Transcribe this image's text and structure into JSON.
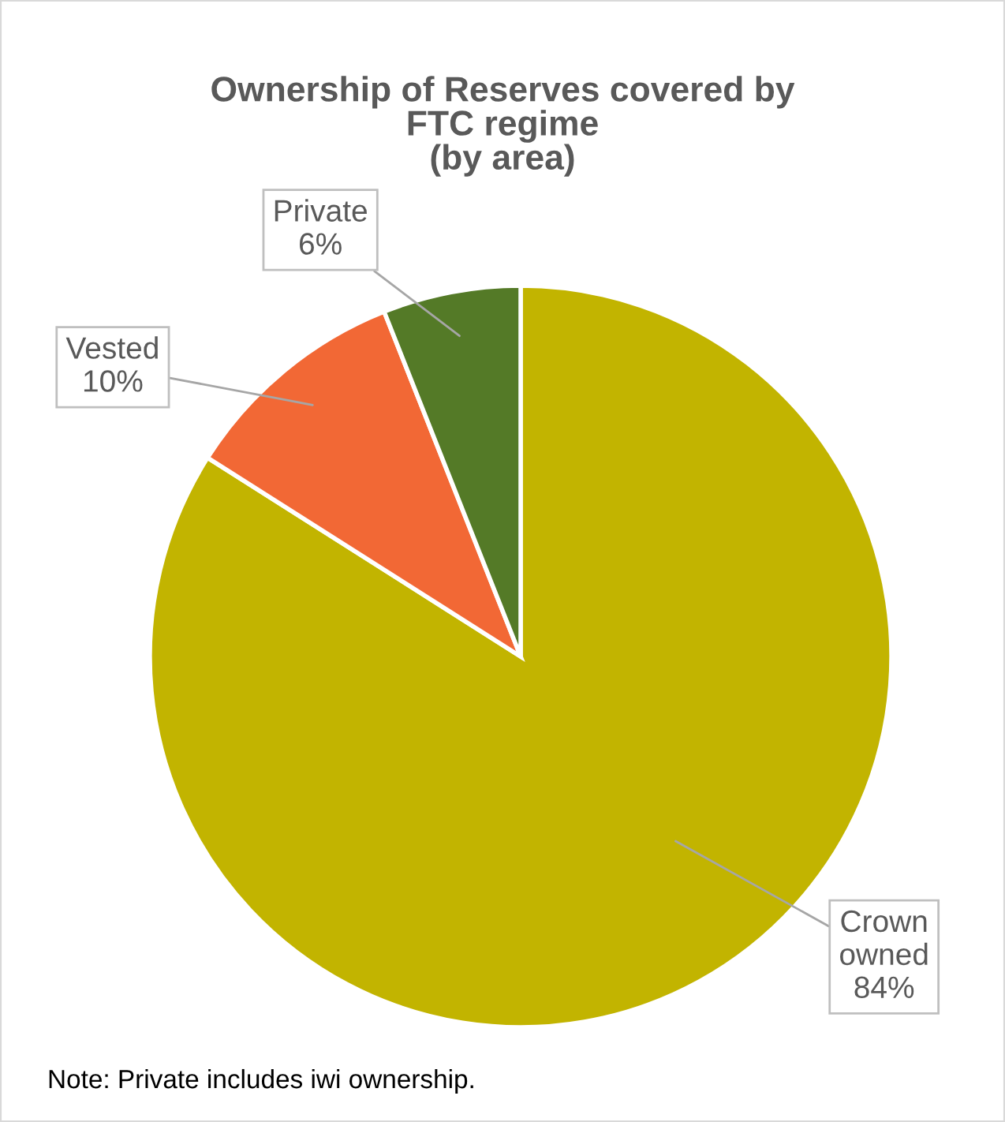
{
  "chart_data": {
    "type": "pie",
    "title": "Ownership of Reserves covered by\nFTC regime\n(by area)",
    "categories": [
      "Crown owned",
      "Vested",
      "Private"
    ],
    "values": [
      84,
      10,
      6
    ],
    "value_labels": [
      "84%",
      "10%",
      "6%"
    ],
    "colors": [
      "#c2b400",
      "#f26835",
      "#547a27"
    ],
    "annotations": [
      "Note: Private includes iwi ownership."
    ]
  }
}
